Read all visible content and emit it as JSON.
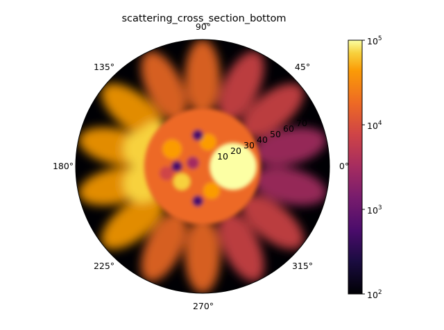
{
  "chart_data": {
    "type": "heatmap",
    "projection": "polar",
    "title": "scattering_cross_section_bottom",
    "theta_ticks": [
      "0°",
      "45°",
      "90°",
      "135°",
      "180°",
      "225°",
      "270°",
      "315°"
    ],
    "theta_tick_degrees": [
      0,
      45,
      90,
      135,
      180,
      225,
      270,
      315
    ],
    "r_ticks": [
      "10",
      "20",
      "30",
      "40",
      "50",
      "60",
      "70"
    ],
    "r_tick_values": [
      10,
      20,
      30,
      40,
      50,
      60,
      70
    ],
    "r_range": [
      0,
      90
    ],
    "colorbar": {
      "scale": "log",
      "range": [
        100,
        100000
      ],
      "ticks": [
        {
          "value": 100,
          "base": "10",
          "exp": "2"
        },
        {
          "value": 1000,
          "base": "10",
          "exp": "3"
        },
        {
          "value": 10000,
          "base": "10",
          "exp": "4"
        },
        {
          "value": 100000,
          "base": "10",
          "exp": "5"
        }
      ],
      "colormap": "inferno"
    },
    "features": {
      "specular_peak": {
        "theta_deg": 0,
        "r": 12,
        "value": 100000
      },
      "forward_lobe_theta_deg": 180,
      "lobes_count": 14
    }
  }
}
